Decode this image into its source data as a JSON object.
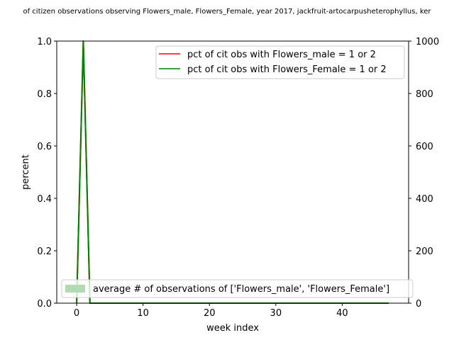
{
  "chart_data": {
    "type": "line",
    "title": "of citizen observations observing Flowers_male, Flowers_Female, year 2017, jackfruit-artocarpusheterophyllus, ker",
    "xlabel": "week index",
    "ylabel": "percent",
    "xlim": [
      -3,
      50
    ],
    "ylim": [
      0,
      1.0
    ],
    "y2lim": [
      0,
      1000
    ],
    "x_ticks": [
      0,
      10,
      20,
      30,
      40
    ],
    "y_ticks": [
      0.0,
      0.2,
      0.4,
      0.6,
      0.8,
      1.0
    ],
    "y2_ticks": [
      0,
      200,
      400,
      600,
      800,
      1000
    ],
    "x_tick_labels": [
      "0",
      "10",
      "20",
      "30",
      "40"
    ],
    "y_tick_labels": [
      "0.0",
      "0.2",
      "0.4",
      "0.6",
      "0.8",
      "1.0"
    ],
    "y2_tick_labels": [
      "0",
      "200",
      "400",
      "600",
      "800",
      "1000"
    ],
    "x": [
      0,
      1,
      2,
      3,
      4,
      5,
      6,
      7,
      8,
      9,
      10,
      11,
      12,
      13,
      14,
      15,
      16,
      17,
      18,
      19,
      20,
      21,
      22,
      23,
      24,
      25,
      26,
      27,
      28,
      29,
      30,
      31,
      32,
      33,
      34,
      35,
      36,
      37,
      38,
      39,
      40,
      41,
      42,
      43,
      44,
      45,
      46,
      47
    ],
    "series": [
      {
        "name": "pct of cit obs with Flowers_male = 1 or 2",
        "color": "#ff0000",
        "values": [
          0,
          1,
          0,
          0,
          0,
          0,
          0,
          0,
          0,
          0,
          0,
          0,
          0,
          0,
          0,
          0,
          0,
          0,
          0,
          0,
          0,
          0,
          0,
          0,
          0,
          0,
          0,
          0,
          0,
          0,
          0,
          0,
          0,
          0,
          0,
          0,
          0,
          0,
          0,
          0,
          0,
          0,
          0,
          0,
          0,
          0,
          0,
          0
        ]
      },
      {
        "name": "pct of cit obs with Flowers_Female = 1 or 2",
        "color": "#008000",
        "values": [
          0,
          1,
          0,
          0,
          0,
          0,
          0,
          0,
          0,
          0,
          0,
          0,
          0,
          0,
          0,
          0,
          0,
          0,
          0,
          0,
          0,
          0,
          0,
          0,
          0,
          0,
          0,
          0,
          0,
          0,
          0,
          0,
          0,
          0,
          0,
          0,
          0,
          0,
          0,
          0,
          0,
          0,
          0,
          0,
          0,
          0,
          0,
          0
        ]
      }
    ],
    "area_series": {
      "name": "average # of observations of ['Flowers_male', 'Flowers_Female']",
      "color": "#b3dab3",
      "axis": "right",
      "values": [
        0,
        0,
        0,
        0,
        0,
        0,
        0,
        0,
        0,
        0,
        0,
        0,
        0,
        0,
        0,
        0,
        0,
        0,
        0,
        0,
        0,
        0,
        0,
        0,
        0,
        0,
        0,
        0,
        0,
        0,
        0,
        0,
        0,
        0,
        0,
        0,
        0,
        0,
        0,
        0,
        0,
        0,
        0,
        0,
        0,
        0,
        0,
        0
      ]
    },
    "legend_top": "top-right",
    "legend_bottom": "lower-center",
    "grid": false
  }
}
